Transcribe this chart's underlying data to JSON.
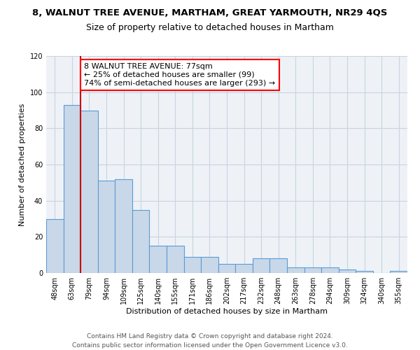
{
  "title": "8, WALNUT TREE AVENUE, MARTHAM, GREAT YARMOUTH, NR29 4QS",
  "subtitle": "Size of property relative to detached houses in Martham",
  "xlabel": "Distribution of detached houses by size in Martham",
  "ylabel": "Number of detached properties",
  "categories": [
    "48sqm",
    "63sqm",
    "79sqm",
    "94sqm",
    "109sqm",
    "125sqm",
    "140sqm",
    "155sqm",
    "171sqm",
    "186sqm",
    "202sqm",
    "217sqm",
    "232sqm",
    "248sqm",
    "263sqm",
    "278sqm",
    "294sqm",
    "309sqm",
    "324sqm",
    "340sqm",
    "355sqm"
  ],
  "values": [
    30,
    93,
    90,
    51,
    52,
    35,
    15,
    15,
    9,
    9,
    5,
    5,
    8,
    8,
    3,
    3,
    3,
    2,
    1,
    0,
    1
  ],
  "bar_color": "#c8d8e8",
  "bar_edge_color": "#5b9bd5",
  "bar_edge_width": 0.8,
  "property_line_index": 2,
  "annotation_text": "8 WALNUT TREE AVENUE: 77sqm\n← 25% of detached houses are smaller (99)\n74% of semi-detached houses are larger (293) →",
  "annotation_box_color": "white",
  "annotation_box_edge_color": "red",
  "red_line_color": "#cc0000",
  "ylim": [
    0,
    120
  ],
  "yticks": [
    0,
    20,
    40,
    60,
    80,
    100,
    120
  ],
  "grid_color": "#c8d4e0",
  "background_color": "#eef2f7",
  "footer_line1": "Contains HM Land Registry data © Crown copyright and database right 2024.",
  "footer_line2": "Contains public sector information licensed under the Open Government Licence v3.0.",
  "title_fontsize": 9.5,
  "subtitle_fontsize": 9,
  "axis_label_fontsize": 8,
  "tick_fontsize": 7,
  "annotation_fontsize": 8,
  "footer_fontsize": 6.5
}
